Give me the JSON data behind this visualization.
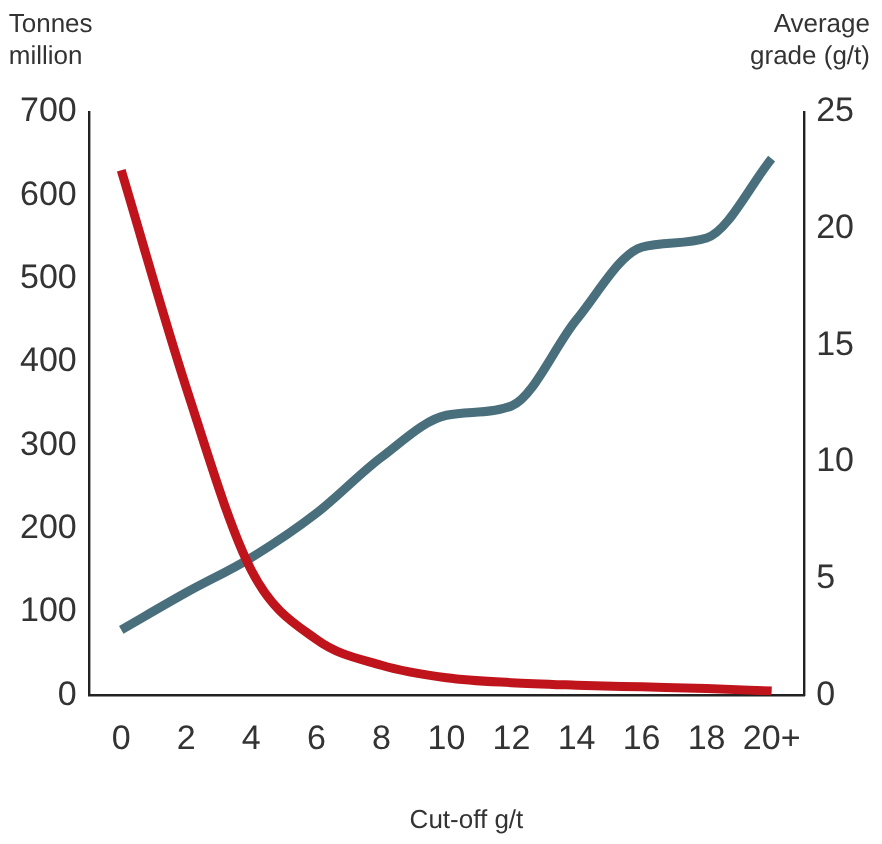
{
  "chart_data": {
    "type": "line",
    "xlabel": "Cut-off g/t",
    "ylabel": "Tonnes million",
    "y2label": "Average grade (g/t)",
    "categories": [
      "0",
      "2",
      "4",
      "6",
      "8",
      "10",
      "12",
      "14",
      "16",
      "18",
      "20+"
    ],
    "series": [
      {
        "color": "#c0141c",
        "values": [
          630,
          369,
          150,
          67,
          36,
          21,
          15,
          12,
          10,
          8,
          5
        ]
      },
      {
        "color": "#4a6f7c",
        "axis": "y2",
        "values": [
          2.8,
          4.4,
          5.9,
          7.8,
          10.2,
          12.0,
          12.4,
          16.1,
          19.2,
          19.6,
          23.0
        ]
      }
    ],
    "ylim": [
      0,
      700
    ],
    "yticks": [
      0,
      100,
      200,
      300,
      400,
      500,
      600,
      700
    ],
    "y2lim": [
      0,
      25
    ],
    "y2ticks": [
      0,
      5,
      10,
      15,
      20,
      25
    ],
    "grid": false,
    "legend": false,
    "marker": "none",
    "line_style": "solid"
  }
}
